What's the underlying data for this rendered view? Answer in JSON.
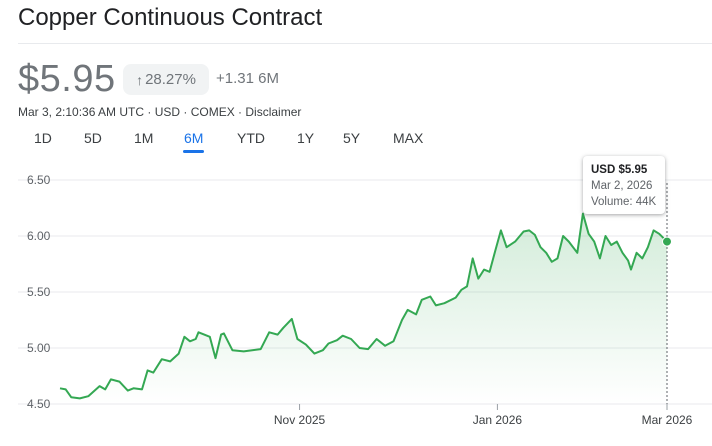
{
  "header": {
    "title": "Copper Continuous Contract",
    "price": "$5.95",
    "change_pct": "28.27%",
    "change_abs": "+1.31 6M",
    "meta": "Mar 3, 2:10:36 AM UTC · USD · COMEX · Disclaimer"
  },
  "icons": {
    "change_arrow": "arrow-up-icon"
  },
  "tabs": [
    {
      "label": "1D"
    },
    {
      "label": "5D"
    },
    {
      "label": "1M"
    },
    {
      "label": "6M",
      "active": true
    },
    {
      "label": "YTD"
    },
    {
      "label": "1Y"
    },
    {
      "label": "5Y"
    },
    {
      "label": "MAX"
    }
  ],
  "tooltip": {
    "price": "USD $5.95",
    "date": "Mar 2, 2026",
    "volume": "Volume: 44K"
  },
  "colors": {
    "line": "#34a853",
    "fill_top": "#34a853",
    "active_tab": "#1a73e8",
    "muted_text": "#70757a"
  },
  "chart_data": {
    "type": "area",
    "y_ticks": [
      "6.50",
      "6.00",
      "5.50",
      "5.00",
      "4.50"
    ],
    "ylim": [
      4.5,
      6.5
    ],
    "x_tick_labels": [
      "Nov 2025",
      "Jan 2026",
      "Mar 2026"
    ],
    "x_tick_values": [
      84.75,
      154.75,
      214.75
    ],
    "x_range": [
      0,
      214.75
    ],
    "grid": true,
    "series": [
      {
        "values": [
          [
            0,
            4.64
          ],
          [
            2,
            4.63
          ],
          [
            4,
            4.56
          ],
          [
            7,
            4.55
          ],
          [
            10,
            4.57
          ],
          [
            14,
            4.66
          ],
          [
            16,
            4.63
          ],
          [
            18,
            4.72
          ],
          [
            21,
            4.7
          ],
          [
            24,
            4.62
          ],
          [
            26,
            4.64
          ],
          [
            29,
            4.63
          ],
          [
            31,
            4.8
          ],
          [
            33,
            4.78
          ],
          [
            36,
            4.9
          ],
          [
            39,
            4.88
          ],
          [
            42,
            4.95
          ],
          [
            44,
            5.1
          ],
          [
            46,
            5.06
          ],
          [
            48,
            5.08
          ],
          [
            49,
            5.14
          ],
          [
            51,
            5.12
          ],
          [
            53,
            5.1
          ],
          [
            55,
            4.91
          ],
          [
            57,
            5.12
          ],
          [
            58,
            5.13
          ],
          [
            61,
            4.98
          ],
          [
            65,
            4.97
          ],
          [
            68,
            4.98
          ],
          [
            71,
            4.99
          ],
          [
            74,
            5.14
          ],
          [
            77,
            5.12
          ],
          [
            79,
            5.18
          ],
          [
            82,
            5.26
          ],
          [
            84,
            5.08
          ],
          [
            87,
            5.03
          ],
          [
            90,
            4.95
          ],
          [
            93,
            4.98
          ],
          [
            95,
            5.04
          ],
          [
            98,
            5.07
          ],
          [
            100,
            5.11
          ],
          [
            103,
            5.08
          ],
          [
            106,
            5.0
          ],
          [
            109,
            4.99
          ],
          [
            112,
            5.08
          ],
          [
            115,
            5.02
          ],
          [
            118,
            5.06
          ],
          [
            121,
            5.25
          ],
          [
            123,
            5.34
          ],
          [
            126,
            5.3
          ],
          [
            128,
            5.43
          ],
          [
            131,
            5.46
          ],
          [
            133,
            5.38
          ],
          [
            136,
            5.4
          ],
          [
            140,
            5.45
          ],
          [
            142,
            5.52
          ],
          [
            144,
            5.55
          ],
          [
            146,
            5.8
          ],
          [
            148,
            5.62
          ],
          [
            150,
            5.7
          ],
          [
            152,
            5.68
          ],
          [
            154,
            5.87
          ],
          [
            156,
            6.05
          ],
          [
            158,
            5.9
          ],
          [
            161,
            5.95
          ],
          [
            164,
            6.04
          ],
          [
            166,
            6.05
          ],
          [
            168,
            6.01
          ],
          [
            170,
            5.9
          ],
          [
            172,
            5.85
          ],
          [
            174,
            5.77
          ],
          [
            176,
            5.8
          ],
          [
            178,
            6.0
          ],
          [
            180,
            5.95
          ],
          [
            183,
            5.85
          ],
          [
            185,
            6.2
          ],
          [
            187,
            6.02
          ],
          [
            189,
            5.95
          ],
          [
            191,
            5.8
          ],
          [
            193,
            6.0
          ],
          [
            195,
            5.92
          ],
          [
            197,
            5.95
          ],
          [
            199,
            5.85
          ],
          [
            201,
            5.78
          ],
          [
            202,
            5.7
          ],
          [
            204,
            5.85
          ],
          [
            206,
            5.8
          ],
          [
            208,
            5.9
          ],
          [
            210,
            6.05
          ],
          [
            212,
            6.02
          ],
          [
            214.75,
            5.95
          ]
        ]
      }
    ],
    "tooltip_point": {
      "x": 214.75,
      "y": 5.95
    }
  }
}
